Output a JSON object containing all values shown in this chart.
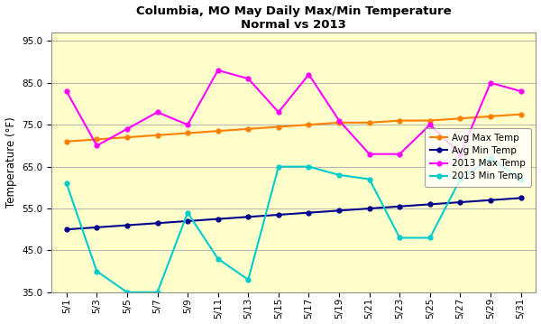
{
  "title": "Columbia, MO May Daily Max/Min Temperature\nNormal vs 2013",
  "ylabel": "Temperature (°F)",
  "background_color": "#FFFFFF",
  "plot_bg_color": "#FFFFCC",
  "ylim": [
    35.0,
    97.0
  ],
  "yticks": [
    35.0,
    45.0,
    55.0,
    65.0,
    75.0,
    85.0,
    95.0
  ],
  "x_labels": [
    "5/1",
    "5/3",
    "5/5",
    "5/7",
    "5/9",
    "5/11",
    "5/13",
    "5/15",
    "5/17",
    "5/19",
    "5/21",
    "5/23",
    "5/25",
    "5/27",
    "5/29",
    "5/31"
  ],
  "avg_max": [
    71,
    71.5,
    72,
    72.5,
    73,
    73.5,
    74,
    74.5,
    75,
    75.5,
    75.5,
    76,
    76,
    76.5,
    77,
    77.5
  ],
  "avg_min": [
    50,
    50.5,
    51,
    51.5,
    52,
    52.5,
    53,
    53.5,
    54,
    54.5,
    55,
    55.5,
    56,
    56.5,
    57,
    57.5
  ],
  "max_2013": [
    83,
    70,
    74,
    78,
    75,
    88,
    86,
    78,
    87,
    76,
    68,
    68,
    75,
    68,
    85,
    83
  ],
  "min_2013": [
    61,
    40,
    35,
    35,
    54,
    43,
    38,
    65,
    65,
    63,
    62,
    48,
    48,
    62,
    67,
    62
  ],
  "colors": {
    "avg_max": "#FF8000",
    "avg_min": "#00008B",
    "max_2013": "#FF00FF",
    "min_2013": "#00CCCC"
  },
  "legend_labels": [
    "Avg Max Temp",
    "Avg Min Temp",
    "2013 Max Temp",
    "2013 Min Temp"
  ]
}
